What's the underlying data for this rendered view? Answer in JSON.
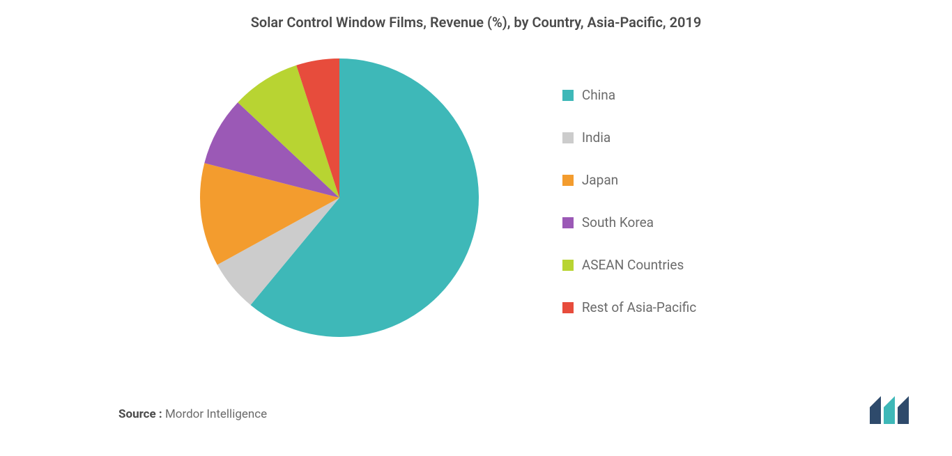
{
  "chart": {
    "type": "pie",
    "title": "Solar Control Window Films, Revenue (%), by Country, Asia-Pacific, 2019",
    "title_fontsize": 20,
    "title_color": "#4a4a4a",
    "background_color": "#ffffff",
    "radius": 200,
    "slices": [
      {
        "label": "China",
        "value": 61,
        "color": "#3eb8b8"
      },
      {
        "label": "India",
        "value": 6,
        "color": "#cccccc"
      },
      {
        "label": "Japan",
        "value": 12,
        "color": "#f39c2e"
      },
      {
        "label": "South Korea",
        "value": 8,
        "color": "#9b59b6"
      },
      {
        "label": "ASEAN Countries",
        "value": 8,
        "color": "#b8d432"
      },
      {
        "label": "Rest of Asia-Pacific",
        "value": 5,
        "color": "#e74c3c"
      }
    ],
    "legend": {
      "position": "right",
      "fontsize": 19,
      "font_color": "#6b6b6b",
      "swatch_size": 16,
      "gap": 38
    }
  },
  "source": {
    "label": "Source :",
    "text": "Mordor Intelligence",
    "fontsize": 17,
    "label_color": "#4a4a4a",
    "text_color": "#6b6b6b"
  },
  "logo": {
    "bar1_color": "#2e4a6b",
    "bar2_color": "#3eb8b8"
  }
}
